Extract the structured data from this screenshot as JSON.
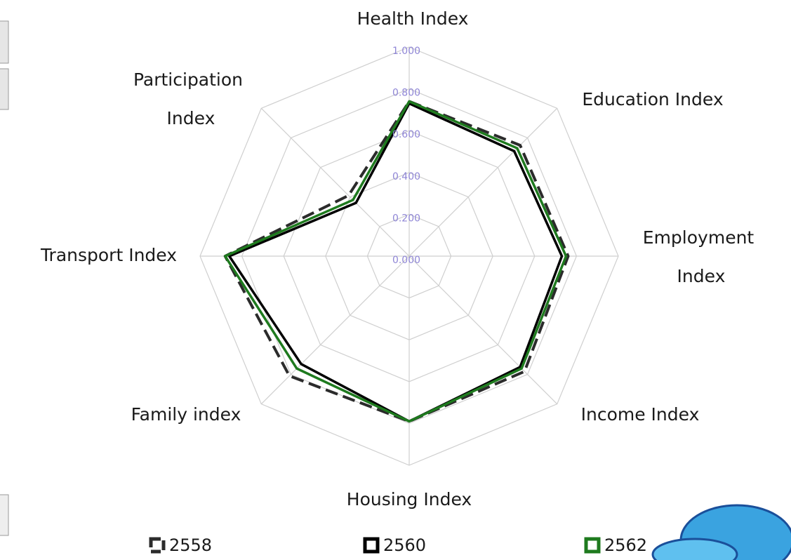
{
  "chart_data": {
    "type": "radar",
    "categories": [
      "Health Index",
      "Education Index",
      "Employment Index",
      "Income Index",
      "Housing Index",
      "Family index",
      "Transport Index",
      "Participation Index"
    ],
    "rlim": [
      0,
      1
    ],
    "rticks": [
      {
        "value": 0,
        "label": "0.000"
      },
      {
        "value": 0.2,
        "label": "0.200"
      },
      {
        "value": 0.4,
        "label": "0.400"
      },
      {
        "value": 0.6,
        "label": "0.600"
      },
      {
        "value": 0.8,
        "label": "0.800"
      },
      {
        "value": 1,
        "label": "1.000"
      }
    ],
    "grid": true,
    "legend": "bottom",
    "series": [
      {
        "name": "2558",
        "color": "#2b2b2b",
        "dashed": true,
        "values": [
          0.74,
          0.75,
          0.76,
          0.78,
          0.79,
          0.81,
          0.88,
          0.41
        ]
      },
      {
        "name": "2560",
        "color": "#000000",
        "values": [
          0.73,
          0.71,
          0.73,
          0.75,
          0.79,
          0.73,
          0.86,
          0.36
        ]
      },
      {
        "name": "2562",
        "color": "#1e7a1e",
        "values": [
          0.74,
          0.73,
          0.75,
          0.76,
          0.79,
          0.76,
          0.88,
          0.38
        ]
      }
    ]
  }
}
